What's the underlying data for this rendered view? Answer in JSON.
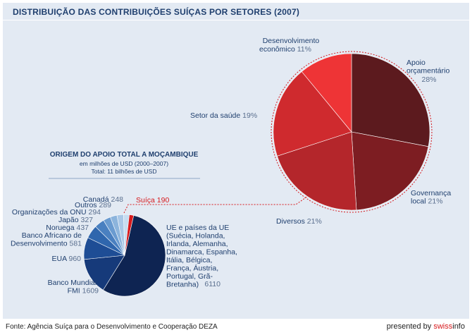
{
  "title": "DISTRIBUIÇÃO DAS CONTRIBUIÇÕES SUÍÇAS POR SETORES (2007)",
  "footer": {
    "source": "Fonte: Agência Suíça para o Desenvolvimento e Cooperação DEZA",
    "presented_by": "presented by",
    "brand_part1": "swiss",
    "brand_part2": "info"
  },
  "colors": {
    "background": "#e3eaf3",
    "title": "#1f3f6e",
    "label": "#1f3f6e",
    "value": "#5a6f8e",
    "highlight": "#d7191c",
    "connector": "#d7191c"
  },
  "chart_data": [
    {
      "type": "pie",
      "title": "DISTRIBUIÇÃO DAS CONTRIBUIÇÕES SUÍÇAS POR SETORES (2007)",
      "unit": "%",
      "slices": [
        {
          "label": "Apoio orçamentário",
          "value": 28,
          "display": "28%",
          "color": "#5c1a1e"
        },
        {
          "label": "Governança local",
          "value": 21,
          "display": "21%",
          "color": "#7d1d22"
        },
        {
          "label": "Diversos",
          "value": 21,
          "display": "21%",
          "color": "#b4262b"
        },
        {
          "label": "Setor da saúde",
          "value": 19,
          "display": "19%",
          "color": "#cf2a2e"
        },
        {
          "label": "Desenvolvimento econômico",
          "value": 11,
          "display": "11%",
          "color": "#ee3436"
        }
      ]
    },
    {
      "type": "pie",
      "title": "ORIGEM DO APOIO TOTAL A MOÇAMBIQUE",
      "subtitle": "em milhões de USD (2000–2007)",
      "subtitle2": "Total: 11 bilhões de USD",
      "unit": "milhões de USD",
      "slices": [
        {
          "label": "UE e países da UE (Suécia, Holanda, Irlanda, Alemanha, Dinamarca, Espanha, Itália, Bélgica, França, Áustria, Portugal, Grã-Bretanha)",
          "value": 6110,
          "display": "6110",
          "color": "#0e2452"
        },
        {
          "label": "Banco Mundial, FMI",
          "value": 1609,
          "display": "1609",
          "color": "#163a7a"
        },
        {
          "label": "EUA",
          "value": 960,
          "display": "960",
          "color": "#1e4d95"
        },
        {
          "label": "Banco Africano de Desenvolvimento",
          "value": 581,
          "display": "581",
          "color": "#2f66ad"
        },
        {
          "label": "Noruega",
          "value": 437,
          "display": "437",
          "color": "#4a80c0"
        },
        {
          "label": "Japão",
          "value": 327,
          "display": "327",
          "color": "#6a9bd0"
        },
        {
          "label": "Organizações da ONU",
          "value": 294,
          "display": "294",
          "color": "#8cb4dc"
        },
        {
          "label": "Outros",
          "value": 289,
          "display": "289",
          "color": "#a9c7e6"
        },
        {
          "label": "Canadá",
          "value": 248,
          "display": "248",
          "color": "#c6dcf0"
        },
        {
          "label": "Suíça",
          "value": 190,
          "display": "190",
          "color": "#d7191c",
          "highlight": true
        }
      ]
    }
  ]
}
